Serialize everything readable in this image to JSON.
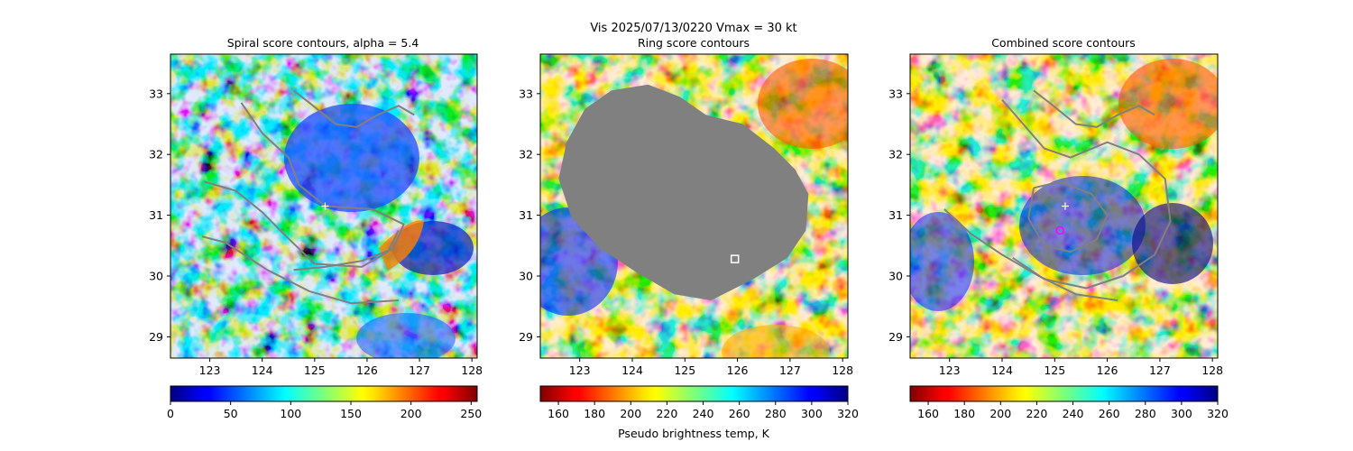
{
  "figure": {
    "suptitle_line1": "Vis  2025/07/13/0220    Vmax = 30 kt",
    "suptitle_line2": "Ring score contours",
    "colorbar_label": "Pseudo brightness temp, K"
  },
  "colors": {
    "contour": "#808080",
    "ring_mask": "#808080",
    "center_cross": "#ffffff",
    "marker_square": "#ffffff",
    "marker_circle": "#ff00ff"
  },
  "chart_data": [
    {
      "type": "heatmap",
      "title": "Spiral score contours, alpha =  5.4",
      "xlabel": "",
      "ylabel": "",
      "xlim": [
        122.25,
        128.1
      ],
      "ylim": [
        28.65,
        33.65
      ],
      "xticks": [
        123,
        124,
        125,
        126,
        127,
        128
      ],
      "yticks": [
        29,
        30,
        31,
        32,
        33
      ],
      "colormap": "jet",
      "colormap_reversed": false,
      "colorbar": {
        "range": [
          0,
          255
        ],
        "ticks": [
          0,
          50,
          100,
          150,
          200,
          250
        ],
        "label": ""
      },
      "center_marker": {
        "x": 125.2,
        "y": 31.15
      },
      "contours": [
        [
          [
            124.6,
            33.05
          ],
          [
            124.9,
            32.85
          ],
          [
            125.4,
            32.5
          ],
          [
            125.8,
            32.45
          ],
          [
            126.2,
            32.65
          ],
          [
            126.6,
            32.8
          ],
          [
            126.9,
            32.65
          ]
        ],
        [
          [
            123.6,
            32.85
          ],
          [
            124.0,
            32.35
          ],
          [
            124.5,
            31.95
          ],
          [
            124.7,
            31.5
          ],
          [
            125.2,
            31.15
          ],
          [
            126.1,
            31.1
          ],
          [
            126.7,
            30.85
          ],
          [
            126.5,
            30.45
          ],
          [
            125.9,
            30.25
          ],
          [
            125.2,
            30.15
          ],
          [
            124.6,
            30.1
          ]
        ],
        [
          [
            122.9,
            31.55
          ],
          [
            123.5,
            31.4
          ],
          [
            124.0,
            31.05
          ],
          [
            124.4,
            30.7
          ],
          [
            125.0,
            30.2
          ],
          [
            125.9,
            30.15
          ],
          [
            126.4,
            30.4
          ],
          [
            126.6,
            30.75
          ]
        ],
        [
          [
            122.85,
            30.65
          ],
          [
            123.3,
            30.55
          ],
          [
            124.1,
            30.1
          ],
          [
            124.9,
            29.75
          ],
          [
            125.7,
            29.55
          ],
          [
            126.6,
            29.6
          ]
        ]
      ]
    },
    {
      "type": "heatmap",
      "title": "Ring score contours",
      "xlabel": "",
      "ylabel": "",
      "xlim": [
        122.25,
        128.1
      ],
      "ylim": [
        28.65,
        33.65
      ],
      "xticks": [
        123,
        124,
        125,
        126,
        127,
        128
      ],
      "yticks": [
        29,
        30,
        31,
        32,
        33
      ],
      "colormap": "jet",
      "colormap_reversed": true,
      "colorbar": {
        "range": [
          150,
          320
        ],
        "ticks": [
          160,
          180,
          200,
          220,
          240,
          260,
          280,
          300,
          320
        ],
        "label": "Pseudo brightness temp, K"
      },
      "square_marker": {
        "x": 125.95,
        "y": 30.28
      },
      "ring_mask_outline": [
        [
          122.6,
          31.6
        ],
        [
          122.75,
          32.2
        ],
        [
          123.1,
          32.75
        ],
        [
          123.6,
          33.05
        ],
        [
          124.3,
          33.15
        ],
        [
          124.9,
          32.95
        ],
        [
          125.4,
          32.65
        ],
        [
          126.1,
          32.5
        ],
        [
          126.7,
          32.1
        ],
        [
          127.1,
          31.75
        ],
        [
          127.35,
          31.35
        ],
        [
          127.3,
          30.75
        ],
        [
          126.95,
          30.3
        ],
        [
          126.3,
          29.95
        ],
        [
          125.5,
          29.6
        ],
        [
          124.8,
          29.7
        ],
        [
          124.1,
          30.05
        ],
        [
          123.4,
          30.45
        ],
        [
          122.85,
          30.95
        ]
      ]
    },
    {
      "type": "heatmap",
      "title": "Combined score contours",
      "xlabel": "",
      "ylabel": "",
      "xlim": [
        122.25,
        128.1
      ],
      "ylim": [
        28.65,
        33.65
      ],
      "xticks": [
        123,
        124,
        125,
        126,
        127,
        128
      ],
      "yticks": [
        29,
        30,
        31,
        32,
        33
      ],
      "colormap": "jet",
      "colormap_reversed": true,
      "colorbar": {
        "range": [
          150,
          320
        ],
        "ticks": [
          160,
          180,
          200,
          220,
          240,
          260,
          280,
          300,
          320
        ],
        "label": ""
      },
      "center_marker": {
        "x": 125.2,
        "y": 31.15
      },
      "circle_marker": {
        "x": 125.1,
        "y": 30.75
      },
      "contours": [
        [
          [
            124.6,
            33.05
          ],
          [
            124.9,
            32.85
          ],
          [
            125.4,
            32.5
          ],
          [
            125.8,
            32.45
          ],
          [
            126.2,
            32.65
          ],
          [
            126.6,
            32.8
          ],
          [
            126.9,
            32.65
          ]
        ],
        [
          [
            124.0,
            32.9
          ],
          [
            124.4,
            32.5
          ],
          [
            124.8,
            32.1
          ],
          [
            125.3,
            31.95
          ],
          [
            126.0,
            32.2
          ],
          [
            126.6,
            32.0
          ],
          [
            127.1,
            31.6
          ],
          [
            127.2,
            30.9
          ],
          [
            126.9,
            30.35
          ],
          [
            126.3,
            30.0
          ],
          [
            125.6,
            29.8
          ],
          [
            124.8,
            29.95
          ],
          [
            124.2,
            30.3
          ]
        ],
        [
          [
            124.6,
            31.45
          ],
          [
            125.1,
            31.55
          ],
          [
            125.7,
            31.35
          ],
          [
            126.0,
            31.0
          ],
          [
            125.8,
            30.6
          ],
          [
            125.3,
            30.4
          ],
          [
            124.8,
            30.5
          ],
          [
            124.5,
            30.95
          ],
          [
            124.6,
            31.45
          ]
        ],
        [
          [
            122.9,
            31.1
          ],
          [
            123.4,
            30.7
          ],
          [
            124.0,
            30.35
          ],
          [
            124.7,
            30.0
          ],
          [
            125.4,
            29.7
          ],
          [
            126.2,
            29.6
          ]
        ]
      ]
    }
  ]
}
